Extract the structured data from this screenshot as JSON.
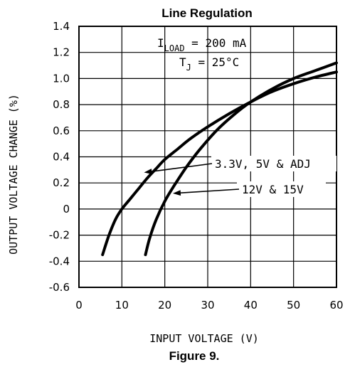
{
  "chart_data": {
    "type": "line",
    "title": "Line Regulation",
    "caption": "Figure 9.",
    "xlabel": "INPUT VOLTAGE (V)",
    "ylabel": "OUTPUT VOLTAGE CHANGE (%)",
    "xlim": [
      0,
      60
    ],
    "ylim": [
      -0.6,
      1.4
    ],
    "x_ticks": [
      0,
      10,
      20,
      30,
      40,
      50,
      60
    ],
    "y_ticks": [
      -0.6,
      -0.4,
      -0.2,
      0,
      0.2,
      0.4,
      0.6,
      0.8,
      1.0,
      1.2,
      1.4
    ],
    "x_tick_labels": [
      "0",
      "10",
      "20",
      "30",
      "40",
      "50",
      "60"
    ],
    "y_tick_labels": [
      "-0.6",
      "-0.4",
      "-0.2",
      "0",
      "0.2",
      "0.4",
      "0.6",
      "0.8",
      "1.0",
      "1.2",
      "1.4"
    ],
    "grid": true,
    "annotations": {
      "load_prefix": "I",
      "load_sub": "LOAD",
      "load_value": " = 200 mA",
      "tj_prefix": "T",
      "tj_sub": "J",
      "tj_value": " = 25°C"
    },
    "series": [
      {
        "name": "3.3V, 5V & ADJ",
        "x": [
          5.5,
          7,
          8.5,
          10,
          12,
          14,
          16,
          18,
          20,
          23,
          26,
          30,
          35,
          40,
          45,
          50,
          55,
          60
        ],
        "y": [
          -0.35,
          -0.2,
          -0.08,
          0.0,
          0.08,
          0.16,
          0.24,
          0.31,
          0.38,
          0.46,
          0.54,
          0.63,
          0.73,
          0.82,
          0.9,
          0.96,
          1.01,
          1.05
        ]
      },
      {
        "name": "12V & 15V",
        "x": [
          15.5,
          16.5,
          18,
          20,
          22,
          25,
          28,
          32,
          36,
          40,
          45,
          50,
          55,
          60
        ],
        "y": [
          -0.35,
          -0.22,
          -0.08,
          0.06,
          0.17,
          0.32,
          0.45,
          0.6,
          0.72,
          0.82,
          0.92,
          1.0,
          1.06,
          1.12
        ]
      }
    ]
  }
}
